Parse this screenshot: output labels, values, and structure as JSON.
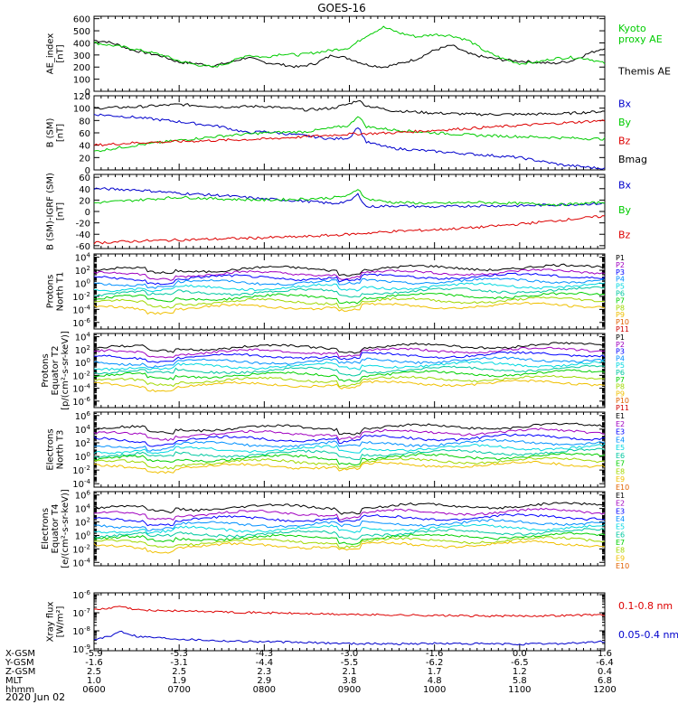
{
  "title": "GOES-16",
  "date": "2020 Jun 02",
  "colors": {
    "black": "#000000",
    "red": "#dd0000",
    "green": "#00cc00",
    "blue": "#0000cc",
    "band": [
      "#000000",
      "#a000c0",
      "#0000ff",
      "#0090ff",
      "#00d8e0",
      "#00c8a0",
      "#00d000",
      "#a0d800",
      "#f0c000",
      "#e06000",
      "#d00000"
    ]
  },
  "chart_data": [
    {
      "type": "line",
      "panel": "ae",
      "ylabel": [
        "AE_index",
        "[nT]"
      ],
      "ytick_labels": [
        "0",
        "100",
        "200",
        "300",
        "400",
        "500",
        "600"
      ],
      "ylim": [
        0,
        620
      ],
      "legend": [
        {
          "name": "Kyoto\nproxy AE",
          "lines": [
            "Kyoto",
            "proxy AE"
          ],
          "color": "green"
        },
        {
          "name": "Themis AE",
          "lines": [
            "Themis AE"
          ],
          "color": "black"
        }
      ],
      "series": [
        {
          "name": "Themis AE",
          "color": "black",
          "x": [
            6.0,
            6.15,
            6.3,
            6.45,
            6.6,
            6.8,
            7.0,
            7.2,
            7.4,
            7.6,
            7.8,
            8.0,
            8.2,
            8.4,
            8.6,
            8.8,
            9.0,
            9.2,
            9.4,
            9.6,
            9.8,
            10.0,
            10.2,
            10.4,
            10.6,
            10.8,
            11.0,
            11.2,
            11.4,
            11.6,
            11.8,
            12.0
          ],
          "y": [
            420,
            410,
            380,
            340,
            320,
            290,
            240,
            230,
            210,
            240,
            280,
            240,
            220,
            200,
            230,
            300,
            270,
            220,
            200,
            230,
            270,
            340,
            380,
            310,
            280,
            260,
            250,
            240,
            230,
            250,
            310,
            360
          ]
        },
        {
          "name": "Kyoto proxy AE",
          "color": "green",
          "x": [
            6.0,
            6.2,
            6.4,
            6.6,
            6.8,
            7.0,
            7.2,
            7.4,
            7.6,
            7.8,
            8.0,
            8.2,
            8.4,
            8.6,
            8.8,
            9.0,
            9.2,
            9.4,
            9.6,
            9.8,
            10.0,
            10.2,
            10.4,
            10.6,
            10.8,
            11.0,
            11.2,
            11.4,
            11.6,
            11.8,
            12.0
          ],
          "y": [
            400,
            380,
            360,
            330,
            300,
            250,
            220,
            200,
            240,
            300,
            280,
            310,
            300,
            320,
            340,
            360,
            460,
            530,
            480,
            450,
            470,
            460,
            420,
            330,
            270,
            230,
            240,
            270,
            280,
            270,
            230
          ]
        }
      ]
    },
    {
      "type": "line",
      "panel": "bgsm",
      "ylabel": [
        "B (SM)",
        "[nT]"
      ],
      "ytick_labels": [
        "0",
        "20",
        "40",
        "60",
        "80",
        "100",
        "120"
      ],
      "ylim": [
        0,
        120
      ],
      "legend": [
        {
          "name": "Bx",
          "lines": [
            "Bx"
          ],
          "color": "blue"
        },
        {
          "name": "By",
          "lines": [
            "By"
          ],
          "color": "green"
        },
        {
          "name": "Bz",
          "lines": [
            "Bz"
          ],
          "color": "red"
        },
        {
          "name": "Bmag",
          "lines": [
            "Bmag"
          ],
          "color": "black"
        }
      ],
      "series": [
        {
          "name": "Bmag",
          "color": "black",
          "x": [
            6.0,
            6.5,
            7.0,
            7.5,
            8.0,
            8.5,
            8.8,
            9.0,
            9.1,
            9.2,
            9.5,
            10.0,
            10.5,
            11.0,
            11.5,
            12.0
          ],
          "y": [
            100,
            102,
            106,
            102,
            103,
            97,
            100,
            107,
            113,
            104,
            96,
            92,
            90,
            90,
            91,
            95
          ]
        },
        {
          "name": "Bx",
          "color": "blue",
          "x": [
            6.0,
            6.5,
            7.0,
            7.5,
            7.8,
            8.0,
            8.5,
            8.8,
            9.0,
            9.1,
            9.2,
            9.5,
            10.0,
            10.5,
            11.0,
            11.5,
            12.0
          ],
          "y": [
            90,
            85,
            78,
            70,
            60,
            62,
            55,
            50,
            52,
            70,
            45,
            35,
            30,
            25,
            20,
            8,
            2
          ]
        },
        {
          "name": "By",
          "color": "green",
          "x": [
            6.0,
            6.5,
            7.0,
            7.5,
            8.0,
            8.5,
            8.8,
            9.0,
            9.1,
            9.2,
            9.5,
            10.0,
            10.5,
            11.0,
            11.5,
            12.0
          ],
          "y": [
            30,
            40,
            48,
            55,
            60,
            62,
            68,
            72,
            88,
            70,
            65,
            60,
            56,
            54,
            52,
            50
          ]
        },
        {
          "name": "Bz",
          "color": "red",
          "x": [
            6.0,
            6.5,
            7.0,
            7.5,
            8.0,
            8.5,
            9.0,
            9.5,
            10.0,
            10.5,
            11.0,
            11.5,
            12.0
          ],
          "y": [
            40,
            44,
            46,
            48,
            50,
            54,
            58,
            60,
            64,
            68,
            72,
            76,
            80
          ]
        }
      ]
    },
    {
      "type": "line",
      "panel": "bigrf",
      "ylabel": [
        "B (SM)-IGRF (SM)",
        "[nT]"
      ],
      "ytick_labels": [
        "-60",
        "-40",
        "-20",
        "0",
        "20",
        "40",
        "60"
      ],
      "ylim": [
        -65,
        65
      ],
      "legend": [
        {
          "name": "Bx",
          "lines": [
            "Bx"
          ],
          "color": "blue"
        },
        {
          "name": "By",
          "lines": [
            "By"
          ],
          "color": "green"
        },
        {
          "name": "Bz",
          "lines": [
            "Bz"
          ],
          "color": "red"
        }
      ],
      "series": [
        {
          "name": "Bx",
          "color": "blue",
          "x": [
            6.0,
            6.5,
            7.0,
            7.5,
            8.0,
            8.5,
            8.8,
            9.0,
            9.1,
            9.2,
            9.5,
            10.0,
            10.5,
            11.0,
            11.5,
            12.0
          ],
          "y": [
            40,
            38,
            32,
            28,
            22,
            18,
            14,
            18,
            30,
            8,
            10,
            8,
            10,
            10,
            12,
            14
          ]
        },
        {
          "name": "By",
          "color": "green",
          "x": [
            6.0,
            6.5,
            7.0,
            7.5,
            8.0,
            8.5,
            8.8,
            9.0,
            9.1,
            9.2,
            9.5,
            10.0,
            10.5,
            11.0,
            11.5,
            12.0
          ],
          "y": [
            15,
            20,
            25,
            22,
            20,
            22,
            24,
            28,
            40,
            22,
            16,
            14,
            16,
            14,
            12,
            16
          ]
        },
        {
          "name": "Bz",
          "color": "red",
          "x": [
            6.0,
            6.5,
            7.0,
            7.5,
            8.0,
            8.5,
            9.0,
            9.5,
            10.0,
            10.5,
            11.0,
            11.5,
            12.0
          ],
          "y": [
            -55,
            -52,
            -50,
            -48,
            -46,
            -44,
            -40,
            -35,
            -32,
            -28,
            -22,
            -15,
            -8
          ]
        }
      ]
    },
    {
      "type": "line",
      "panel": "protons_t1",
      "ylabel": [
        "Protons",
        "North T1"
      ],
      "log": true,
      "ytick_labels": [
        "10^-6",
        "10^-4",
        "10^-2",
        "10^0",
        "10^2",
        "10^4"
      ],
      "ylim": [
        -7,
        4.5
      ],
      "legend_channels": [
        "P1",
        "P2",
        "P3",
        "P4",
        "P5",
        "P6",
        "P7",
        "P8",
        "P9",
        "P10",
        "P11"
      ],
      "channel_levels": [
        2.0,
        1.3,
        0.7,
        0.0,
        -0.8,
        -1.5,
        -2.3,
        -3.0,
        -3.8
      ],
      "channel_count": 9
    },
    {
      "type": "line",
      "panel": "protons_t2",
      "ylabel": [
        "Protons",
        "Equator T2",
        "[p/(cm²-s-sr-keV)]"
      ],
      "log": true,
      "ytick_labels": [
        "10^-6",
        "10^-4",
        "10^-2",
        "10^0",
        "10^2",
        "10^4"
      ],
      "ylim": [
        -7,
        4.5
      ],
      "legend_channels": [
        "P1",
        "P2",
        "P3",
        "P4",
        "P5",
        "P6",
        "P7",
        "P8",
        "P9",
        "P10",
        "P11"
      ],
      "channel_levels": [
        2.2,
        1.5,
        0.8,
        0.0,
        -0.7,
        -1.4,
        -2.1,
        -2.9,
        -3.6
      ],
      "channel_count": 9
    },
    {
      "type": "line",
      "panel": "electrons_t3",
      "ylabel": [
        "Electrons",
        "North T3"
      ],
      "log": true,
      "ytick_labels": [
        "10^-4",
        "10^-2",
        "10^0",
        "10^2",
        "10^4",
        "10^6"
      ],
      "ylim": [
        -4.5,
        6.5
      ],
      "legend_channels": [
        "E1",
        "E2",
        "E3",
        "E4",
        "E5",
        "E6",
        "E7",
        "E8",
        "E9",
        "E10"
      ],
      "channel_levels": [
        4.0,
        3.2,
        2.4,
        1.6,
        0.9,
        0.2,
        -0.4,
        -1.0,
        -1.6
      ],
      "channel_count": 9
    },
    {
      "type": "line",
      "panel": "electrons_t4",
      "ylabel": [
        "Electrons",
        "Equator T4",
        "[e/(cm²-s-sr-keV)]"
      ],
      "log": true,
      "ytick_labels": [
        "10^-4",
        "10^-2",
        "10^0",
        "10^2",
        "10^4",
        "10^6"
      ],
      "ylim": [
        -4.5,
        6.5
      ],
      "legend_channels": [
        "E1",
        "E2",
        "E3",
        "E4",
        "E5",
        "E6",
        "E7",
        "E8",
        "E9",
        "E10"
      ],
      "channel_levels": [
        4.0,
        3.1,
        2.3,
        1.5,
        0.8,
        0.1,
        -0.5,
        -1.1,
        -1.7
      ],
      "channel_count": 9
    },
    {
      "type": "line",
      "panel": "xray",
      "ylabel": [
        "Xray flux",
        "[W/m²]"
      ],
      "log": true,
      "ytick_labels": [
        "10^-9",
        "10^-8",
        "10^-7",
        "10^-6"
      ],
      "ylim": [
        -9.1,
        -5.9
      ],
      "legend": [
        {
          "name": "0.1-0.8 nm",
          "lines": [
            "0.1-0.8 nm"
          ],
          "color": "red"
        },
        {
          "name": "0.05-0.4 nm",
          "lines": [
            "0.05-0.4 nm"
          ],
          "color": "blue"
        }
      ],
      "series": [
        {
          "name": "0.1-0.8 nm",
          "color": "red",
          "x": [
            6.0,
            6.2,
            6.3,
            6.5,
            7.0,
            7.5,
            8.0,
            8.5,
            9.0,
            9.5,
            10.0,
            10.5,
            11.0,
            11.5,
            12.0
          ],
          "y": [
            -6.85,
            -6.75,
            -6.65,
            -6.85,
            -6.9,
            -6.95,
            -7.0,
            -7.05,
            -7.1,
            -7.12,
            -7.15,
            -7.18,
            -7.18,
            -7.15,
            -7.1
          ]
        },
        {
          "name": "0.05-0.4 nm",
          "color": "blue",
          "x": [
            6.0,
            6.2,
            6.3,
            6.5,
            7.0,
            7.5,
            8.0,
            8.5,
            9.0,
            9.5,
            10.0,
            10.5,
            11.0,
            11.5,
            12.0
          ],
          "y": [
            -8.5,
            -8.3,
            -8.0,
            -8.3,
            -8.45,
            -8.55,
            -8.6,
            -8.65,
            -8.7,
            -8.72,
            -8.7,
            -8.72,
            -8.74,
            -8.7,
            -8.6
          ]
        }
      ]
    }
  ],
  "x_axis": {
    "xlim": [
      6.0,
      12.0
    ],
    "ticks": [
      6,
      7,
      8,
      9,
      10,
      11,
      12
    ],
    "rows": [
      {
        "label": "X-GSM",
        "values": [
          "-5.9",
          "-5.3",
          "-4.3",
          "-3.0",
          "-1.6",
          "0.0",
          "1.6"
        ]
      },
      {
        "label": "Y-GSM",
        "values": [
          "-1.6",
          "-3.1",
          "-4.4",
          "-5.5",
          "-6.2",
          "-6.5",
          "-6.4"
        ]
      },
      {
        "label": "Z-GSM",
        "values": [
          "2.5",
          "2.5",
          "2.3",
          "2.1",
          "1.7",
          "1.2",
          "0.4"
        ]
      },
      {
        "label": "MLT",
        "values": [
          "1.0",
          "1.9",
          "2.9",
          "3.8",
          "4.8",
          "5.8",
          "6.8"
        ]
      },
      {
        "label": "hhmm",
        "values": [
          "0600",
          "0700",
          "0800",
          "0900",
          "1000",
          "1100",
          "1200"
        ]
      }
    ]
  }
}
